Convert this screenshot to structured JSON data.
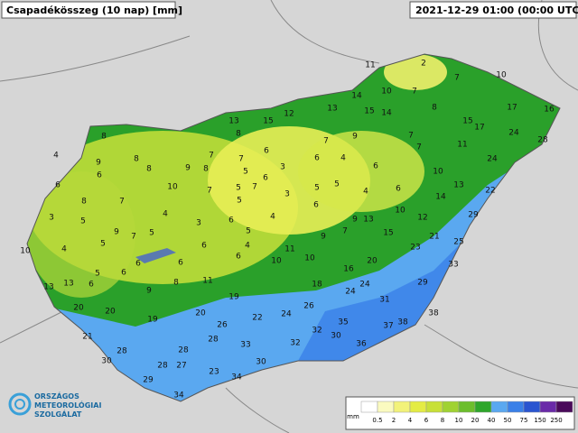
{
  "header": {
    "title": "Csapadékösszeg (10 nap) [mm]",
    "timestamp": "2021-12-29 01:00 (00:00 UTC)"
  },
  "stations": [
    11,
    2,
    7,
    10,
    10,
    7,
    14,
    8,
    17,
    16,
    13,
    15,
    12,
    13,
    15,
    14,
    15,
    17,
    24,
    28,
    8,
    8,
    7,
    9,
    7,
    4,
    6,
    6,
    4,
    7,
    11,
    9,
    8,
    7,
    7,
    3,
    6,
    8,
    9,
    8,
    5,
    10,
    24,
    6,
    6,
    10,
    7,
    5,
    7,
    5,
    5,
    4,
    6,
    13,
    8,
    7,
    6,
    3,
    5,
    14,
    22,
    3,
    5,
    4,
    3,
    4,
    6,
    9,
    13,
    10,
    12,
    29,
    9,
    7,
    5,
    5,
    6,
    5,
    9,
    7,
    15,
    21,
    25,
    10,
    4,
    6,
    4,
    11,
    10,
    10,
    23,
    5,
    6,
    6,
    6,
    6,
    20,
    33,
    13,
    13,
    6,
    9,
    8,
    11,
    18,
    16,
    20,
    20,
    19,
    24,
    24,
    31,
    29,
    19,
    20,
    22,
    24,
    26,
    38,
    21,
    26,
    28,
    33,
    32,
    35,
    30,
    37,
    38,
    28,
    28,
    32,
    36,
    30,
    28,
    27,
    30,
    29,
    23,
    34,
    34
  ],
  "legend": {
    "unit": "mm",
    "labels": [
      0.5,
      2,
      4,
      6,
      8,
      10,
      20,
      40,
      50,
      75,
      150,
      250
    ],
    "colors": [
      "#ffffff",
      "#fafac0",
      "#f2f27a",
      "#e4ec44",
      "#c8e038",
      "#a0d232",
      "#6cbe2c",
      "#2ea62a",
      "#5aa8f0",
      "#3a80e8",
      "#2a55d0",
      "#6a2aa8",
      "#4a0a5a"
    ]
  },
  "logo": {
    "lines": [
      "ORSZÁGOS",
      "METEOROLÓGIAI",
      "SZOLGÁLAT"
    ]
  }
}
